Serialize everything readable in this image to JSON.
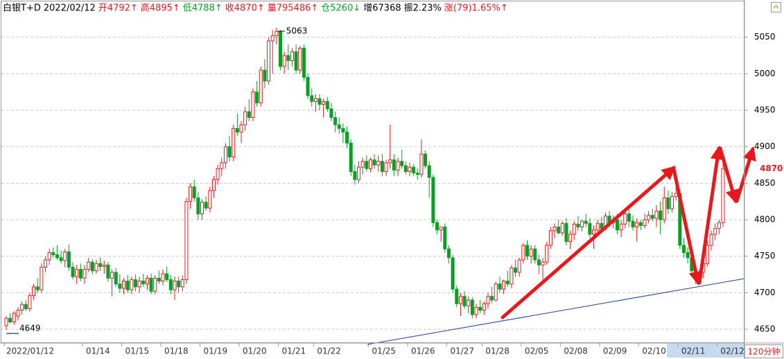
{
  "chart_data": {
    "type": "candlestick",
    "title": "白银T+D",
    "date": "2022/02/12",
    "stats": [
      {
        "text": "开4792↑",
        "color": "#e8191c"
      },
      {
        "text": "高4895↑",
        "color": "#e8191c"
      },
      {
        "text": "低4788↑",
        "color": "#07a024"
      },
      {
        "text": "收4870↑",
        "color": "#e8191c"
      },
      {
        "text": "量795486↑",
        "color": "#e8191c"
      },
      {
        "text": "仓5260↓",
        "color": "#07a024"
      },
      {
        "text": "增67368",
        "color": "#000000"
      },
      {
        "text": "振2.23%",
        "color": "#000000"
      },
      {
        "text": "涨(79)1.65%↑",
        "color": "#e8191c"
      }
    ],
    "period": "120分钟",
    "up_color": "#e8191c",
    "down_color": "#07a024",
    "ylim": [
      4632,
      5101
    ],
    "yticks": [
      4650,
      4700,
      4750,
      4800,
      4850,
      4900,
      4950,
      5000,
      5050
    ],
    "grid": true,
    "categories": [
      "2022/01/12",
      null,
      null,
      null,
      null,
      null,
      null,
      null,
      null,
      null,
      null,
      null,
      null,
      null,
      null,
      null,
      null,
      null,
      null,
      null,
      "01/14",
      null,
      null,
      null,
      null,
      null,
      null,
      null,
      null,
      null,
      "01/15",
      null,
      null,
      null,
      null,
      null,
      null,
      null,
      null,
      null,
      "01/18",
      null,
      null,
      null,
      null,
      null,
      null,
      null,
      null,
      null,
      "01/19",
      null,
      null,
      null,
      null,
      null,
      null,
      null,
      null,
      null,
      "01/20",
      null,
      null,
      null,
      null,
      null,
      null,
      null,
      null,
      null,
      "01/21",
      null,
      null,
      null,
      null,
      null,
      null,
      null,
      null,
      "01/22",
      null,
      null,
      null,
      null,
      null,
      null,
      null,
      null,
      null,
      null,
      null,
      null,
      null,
      "01/25",
      null,
      null,
      null,
      null,
      null,
      null,
      null,
      null,
      null,
      "01/26",
      null,
      null,
      null,
      null,
      null,
      null,
      null,
      null,
      null,
      "01/27",
      null,
      null,
      null,
      null,
      null,
      null,
      null,
      null,
      "01/28",
      null,
      null,
      null,
      null,
      null,
      null,
      null,
      null,
      null,
      "02/05",
      null,
      null,
      null,
      null,
      null,
      null,
      null,
      null,
      null,
      "02/08",
      null,
      null,
      null,
      null,
      null,
      null,
      null,
      null,
      null,
      "02/09",
      null,
      null,
      null,
      null,
      null,
      null,
      null,
      null,
      null,
      "02/10",
      null,
      null,
      null,
      null,
      null,
      null,
      null,
      null,
      null,
      "02/11",
      null,
      null,
      null,
      null,
      null,
      null,
      null,
      null,
      null,
      "02/12",
      null
    ],
    "ohlc": [
      [
        4655,
        4668,
        4649,
        4665
      ],
      [
        4665,
        4672,
        4658,
        4660
      ],
      [
        4660,
        4675,
        4656,
        4672
      ],
      [
        4668,
        4680,
        4662,
        4676
      ],
      [
        4676,
        4688,
        4670,
        4684
      ],
      [
        4684,
        4690,
        4675,
        4678
      ],
      [
        4678,
        4700,
        4674,
        4696
      ],
      [
        4696,
        4712,
        4690,
        4708
      ],
      [
        4708,
        4720,
        4700,
        4704
      ],
      [
        4704,
        4740,
        4700,
        4735
      ],
      [
        4735,
        4750,
        4728,
        4745
      ],
      [
        4745,
        4760,
        4738,
        4755
      ],
      [
        4755,
        4762,
        4748,
        4752
      ],
      [
        4752,
        4765,
        4745,
        4748
      ],
      [
        4748,
        4758,
        4740,
        4744
      ],
      [
        4744,
        4760,
        4735,
        4756
      ],
      [
        4756,
        4766,
        4730,
        4735
      ],
      [
        4735,
        4742,
        4718,
        4722
      ],
      [
        4722,
        4738,
        4712,
        4732
      ],
      [
        4732,
        4740,
        4716,
        4720
      ],
      [
        4720,
        4738,
        4712,
        4732
      ],
      [
        4732,
        4748,
        4728,
        4742
      ],
      [
        4742,
        4746,
        4725,
        4730
      ],
      [
        4730,
        4745,
        4726,
        4740
      ],
      [
        4740,
        4748,
        4730,
        4736
      ],
      [
        4736,
        4744,
        4726,
        4738
      ],
      [
        4738,
        4742,
        4715,
        4720
      ],
      [
        4720,
        4732,
        4695,
        4728
      ],
      [
        4728,
        4734,
        4708,
        4712
      ],
      [
        4712,
        4725,
        4700,
        4706
      ],
      [
        4706,
        4720,
        4698,
        4716
      ],
      [
        4716,
        4724,
        4700,
        4704
      ],
      [
        4704,
        4722,
        4698,
        4718
      ],
      [
        4718,
        4725,
        4702,
        4708
      ],
      [
        4708,
        4722,
        4700,
        4716
      ],
      [
        4716,
        4726,
        4708,
        4712
      ],
      [
        4712,
        4724,
        4704,
        4720
      ],
      [
        4720,
        4726,
        4698,
        4702
      ],
      [
        4702,
        4724,
        4698,
        4720
      ],
      [
        4720,
        4730,
        4712,
        4716
      ],
      [
        4716,
        4732,
        4710,
        4726
      ],
      [
        4726,
        4736,
        4715,
        4718
      ],
      [
        4718,
        4724,
        4698,
        4704
      ],
      [
        4704,
        4722,
        4690,
        4716
      ],
      [
        4716,
        4722,
        4700,
        4708
      ],
      [
        4708,
        4724,
        4702,
        4718
      ],
      [
        4718,
        4830,
        4712,
        4825
      ],
      [
        4825,
        4850,
        4815,
        4845
      ],
      [
        4845,
        4855,
        4825,
        4830
      ],
      [
        4830,
        4838,
        4800,
        4808
      ],
      [
        4808,
        4828,
        4800,
        4824
      ],
      [
        4824,
        4832,
        4812,
        4816
      ],
      [
        4816,
        4845,
        4810,
        4840
      ],
      [
        4840,
        4860,
        4830,
        4855
      ],
      [
        4855,
        4875,
        4848,
        4870
      ],
      [
        4870,
        4885,
        4860,
        4878
      ],
      [
        4878,
        4905,
        4870,
        4900
      ],
      [
        4900,
        4915,
        4880,
        4886
      ],
      [
        4886,
        4930,
        4880,
        4925
      ],
      [
        4925,
        4945,
        4915,
        4920
      ],
      [
        4920,
        4935,
        4905,
        4930
      ],
      [
        4930,
        4955,
        4922,
        4948
      ],
      [
        4948,
        4965,
        4935,
        4940
      ],
      [
        4940,
        4980,
        4935,
        4975
      ],
      [
        4975,
        4990,
        4955,
        4960
      ],
      [
        4960,
        5010,
        4955,
        5005
      ],
      [
        5005,
        5020,
        4980,
        4990
      ],
      [
        4990,
        5050,
        4985,
        5045
      ],
      [
        5045,
        5060,
        5000,
        5052
      ],
      [
        5052,
        5063,
        5040,
        5058
      ],
      [
        5058,
        5060,
        5005,
        5010
      ],
      [
        5010,
        5030,
        5000,
        5025
      ],
      [
        5025,
        5040,
        5005,
        5018
      ],
      [
        5018,
        5035,
        5010,
        5030
      ],
      [
        5030,
        5040,
        5000,
        5005
      ],
      [
        5005,
        5038,
        5000,
        5035
      ],
      [
        5035,
        5040,
        4990,
        4995
      ],
      [
        4995,
        5000,
        4965,
        4970
      ],
      [
        4970,
        4980,
        4955,
        4962
      ],
      [
        4962,
        4972,
        4948,
        4966
      ],
      [
        4966,
        4972,
        4950,
        4958
      ],
      [
        4958,
        4966,
        4940,
        4962
      ],
      [
        4962,
        4968,
        4948,
        4952
      ],
      [
        4952,
        4960,
        4935,
        4940
      ],
      [
        4940,
        4948,
        4920,
        4930
      ],
      [
        4930,
        4940,
        4918,
        4925
      ],
      [
        4925,
        4932,
        4905,
        4920
      ],
      [
        4920,
        4928,
        4898,
        4905
      ],
      [
        4905,
        4910,
        4860,
        4866
      ],
      [
        4866,
        4875,
        4848,
        4855
      ],
      [
        4855,
        4880,
        4850,
        4872
      ],
      [
        4872,
        4885,
        4862,
        4880
      ],
      [
        4880,
        4888,
        4866,
        4870
      ],
      [
        4870,
        4885,
        4865,
        4882
      ],
      [
        4882,
        4890,
        4870,
        4875
      ],
      [
        4875,
        4888,
        4866,
        4880
      ],
      [
        4880,
        4890,
        4860,
        4866
      ],
      [
        4866,
        4882,
        4860,
        4878
      ],
      [
        4878,
        4930,
        4870,
        4882
      ],
      [
        4882,
        4890,
        4860,
        4868
      ],
      [
        4868,
        4885,
        4860,
        4880
      ],
      [
        4880,
        4896,
        4870,
        4874
      ],
      [
        4874,
        4880,
        4862,
        4866
      ],
      [
        4866,
        4878,
        4860,
        4872
      ],
      [
        4872,
        4876,
        4860,
        4864
      ],
      [
        4864,
        4870,
        4855,
        4862
      ],
      [
        4862,
        4910,
        4858,
        4890
      ],
      [
        4890,
        4895,
        4870,
        4874
      ],
      [
        4874,
        4880,
        4830,
        4858
      ],
      [
        4858,
        4862,
        4790,
        4796
      ],
      [
        4796,
        4800,
        4780,
        4786
      ],
      [
        4786,
        4790,
        4770,
        4790
      ],
      [
        4790,
        4795,
        4755,
        4760
      ],
      [
        4760,
        4765,
        4740,
        4748
      ],
      [
        4748,
        4752,
        4700,
        4705
      ],
      [
        4705,
        4710,
        4680,
        4685
      ],
      [
        4685,
        4700,
        4668,
        4695
      ],
      [
        4695,
        4702,
        4678,
        4682
      ],
      [
        4682,
        4695,
        4672,
        4690
      ],
      [
        4690,
        4694,
        4665,
        4670
      ],
      [
        4670,
        4685,
        4665,
        4680
      ],
      [
        4680,
        4690,
        4672,
        4676
      ],
      [
        4676,
        4688,
        4670,
        4685
      ],
      [
        4685,
        4700,
        4678,
        4695
      ],
      [
        4695,
        4708,
        4686,
        4690
      ],
      [
        4690,
        4715,
        4688,
        4712
      ],
      [
        4712,
        4722,
        4700,
        4705
      ],
      [
        4705,
        4718,
        4698,
        4716
      ],
      [
        4716,
        4730,
        4708,
        4712
      ],
      [
        4712,
        4738,
        4706,
        4734
      ],
      [
        4734,
        4745,
        4722,
        4728
      ],
      [
        4728,
        4748,
        4722,
        4745
      ],
      [
        4745,
        4768,
        4740,
        4765
      ],
      [
        4765,
        4772,
        4745,
        4750
      ],
      [
        4750,
        4765,
        4740,
        4760
      ],
      [
        4760,
        4765,
        4740,
        4745
      ],
      [
        4745,
        4752,
        4725,
        4738
      ],
      [
        4738,
        4748,
        4718,
        4742
      ],
      [
        4742,
        4770,
        4738,
        4765
      ],
      [
        4765,
        4790,
        4760,
        4785
      ],
      [
        4785,
        4795,
        4775,
        4790
      ],
      [
        4790,
        4800,
        4780,
        4782
      ],
      [
        4782,
        4798,
        4778,
        4795
      ],
      [
        4795,
        4802,
        4765,
        4770
      ],
      [
        4770,
        4785,
        4760,
        4780
      ],
      [
        4780,
        4798,
        4772,
        4794
      ],
      [
        4794,
        4805,
        4785,
        4790
      ],
      [
        4790,
        4800,
        4784,
        4798
      ],
      [
        4798,
        4808,
        4790,
        4795
      ],
      [
        4795,
        4802,
        4775,
        4780
      ],
      [
        4780,
        4792,
        4760,
        4786
      ],
      [
        4786,
        4800,
        4778,
        4795
      ],
      [
        4795,
        4804,
        4782,
        4788
      ],
      [
        4788,
        4810,
        4785,
        4805
      ],
      [
        4805,
        4812,
        4790,
        4796
      ],
      [
        4796,
        4806,
        4788,
        4800
      ],
      [
        4800,
        4808,
        4780,
        4786
      ],
      [
        4786,
        4800,
        4776,
        4794
      ],
      [
        4794,
        4812,
        4788,
        4808
      ],
      [
        4808,
        4815,
        4790,
        4798
      ],
      [
        4798,
        4806,
        4785,
        4790
      ],
      [
        4790,
        4802,
        4770,
        4796
      ],
      [
        4796,
        4800,
        4786,
        4792
      ],
      [
        4792,
        4808,
        4788,
        4800
      ],
      [
        4800,
        4812,
        4795,
        4806
      ],
      [
        4806,
        4815,
        4798,
        4802
      ],
      [
        4802,
        4820,
        4790,
        4812
      ],
      [
        4812,
        4825,
        4780,
        4800
      ],
      [
        4800,
        4845,
        4795,
        4830
      ],
      [
        4830,
        4840,
        4808,
        4815
      ],
      [
        4815,
        4838,
        4810,
        4832
      ],
      [
        4832,
        4845,
        4826,
        4836
      ],
      [
        4836,
        4842,
        4760,
        4765
      ],
      [
        4765,
        4775,
        4748,
        4755
      ],
      [
        4755,
        4762,
        4740,
        4748
      ],
      [
        4748,
        4752,
        4725,
        4730
      ],
      [
        4730,
        4738,
        4712,
        4720
      ],
      [
        4720,
        4732,
        4712,
        4728
      ],
      [
        4728,
        4745,
        4720,
        4740
      ],
      [
        4740,
        4772,
        4736,
        4765
      ],
      [
        4765,
        4785,
        4758,
        4780
      ],
      [
        4780,
        4795,
        4772,
        4788
      ],
      [
        4788,
        4800,
        4780,
        4796
      ],
      [
        4796,
        4880,
        4790,
        4870
      ]
    ]
  }
}
